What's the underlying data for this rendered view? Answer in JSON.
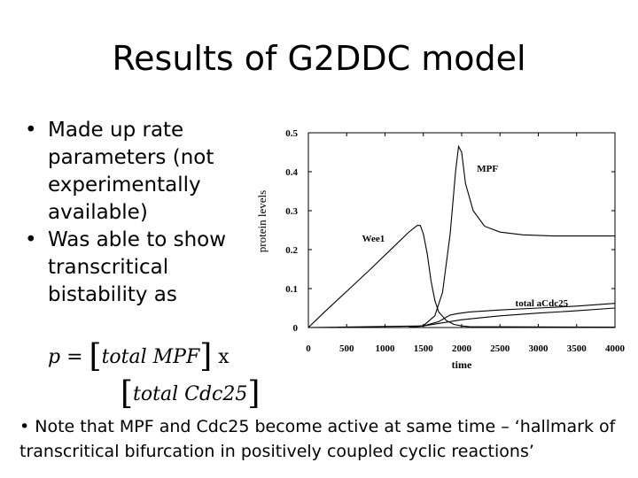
{
  "slide": {
    "title": "Results of G2DDC model",
    "bullets": [
      "Made up rate parameters (not experimentally available)",
      "Was able to show transcritical bistability as"
    ],
    "bullet_glyph": "•",
    "formula": {
      "lhs": "p =",
      "numerator": "total MPF",
      "times": "x",
      "denominator": "total Cdc25"
    },
    "note": "Note that MPF and Cdc25 become active at same time – ‘hallmark of transcritical bifurcation in positively coupled cyclic reactions’"
  },
  "chart_data": {
    "type": "line",
    "title": "",
    "xlabel": "time",
    "ylabel": "protein levels",
    "xlim": [
      0,
      4000
    ],
    "ylim": [
      0,
      0.5
    ],
    "xticks": [
      0,
      500,
      1000,
      1500,
      2000,
      2500,
      3000,
      3500,
      4000
    ],
    "yticks": [
      0,
      0.1,
      0.2,
      0.3,
      0.4,
      0.5
    ],
    "ytick_labels": [
      "0",
      "0.1",
      "0.2",
      "0.3",
      "0.4",
      "0.5"
    ],
    "grid": false,
    "series": [
      {
        "name": "MPF",
        "x": [
          0,
          1300,
          1500,
          1650,
          1750,
          1850,
          1920,
          1960,
          2000,
          2050,
          2150,
          2300,
          2500,
          2800,
          3200,
          4000
        ],
        "y": [
          0,
          0,
          0.005,
          0.03,
          0.09,
          0.24,
          0.4,
          0.465,
          0.45,
          0.37,
          0.3,
          0.26,
          0.245,
          0.238,
          0.235,
          0.235
        ]
      },
      {
        "name": "Wee1",
        "x": [
          0,
          200,
          500,
          800,
          1100,
          1300,
          1420,
          1460,
          1500,
          1550,
          1600,
          1650,
          1700,
          1800,
          1900,
          2000,
          2100,
          4000
        ],
        "y": [
          0,
          0.038,
          0.093,
          0.148,
          0.205,
          0.243,
          0.262,
          0.262,
          0.24,
          0.19,
          0.12,
          0.07,
          0.04,
          0.018,
          0.008,
          0.004,
          0.002,
          0.001
        ]
      },
      {
        "name": "total aCdc25",
        "x": [
          0,
          1300,
          1500,
          1700,
          1850,
          1950,
          2100,
          2500,
          3000,
          3500,
          4000
        ],
        "y": [
          0,
          0,
          0.004,
          0.015,
          0.032,
          0.036,
          0.04,
          0.045,
          0.05,
          0.055,
          0.062
        ]
      },
      {
        "name": "",
        "x": [
          0,
          1500,
          2000,
          2500,
          3000,
          3500,
          4000
        ],
        "y": [
          0,
          0.004,
          0.02,
          0.03,
          0.037,
          0.043,
          0.05
        ]
      }
    ],
    "annotations": [
      {
        "text": "MPF",
        "x": 2200,
        "y": 0.4
      },
      {
        "text": "Wee1",
        "x": 700,
        "y": 0.22
      },
      {
        "text": "total aCdc25",
        "x": 2700,
        "y": 0.055
      }
    ]
  }
}
